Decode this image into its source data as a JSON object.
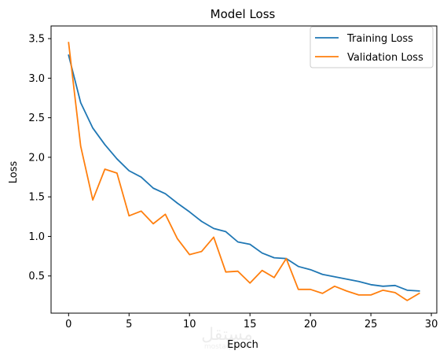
{
  "chart_data": {
    "type": "line",
    "title": "Model Loss",
    "xlabel": "Epoch",
    "ylabel": "Loss",
    "xlim": [
      -1.45,
      30.45
    ],
    "ylim": [
      0.03,
      3.66
    ],
    "xticks": [
      0,
      5,
      10,
      15,
      20,
      25,
      30
    ],
    "xtick_labels": [
      "0",
      "5",
      "10",
      "15",
      "20",
      "25",
      "30"
    ],
    "yticks": [
      0.5,
      1.0,
      1.5,
      2.0,
      2.5,
      3.0,
      3.5
    ],
    "ytick_labels": [
      "0.5",
      "1.0",
      "1.5",
      "2.0",
      "2.5",
      "3.0",
      "3.5"
    ],
    "grid": false,
    "legend_position": "top-right",
    "x": [
      0,
      1,
      2,
      3,
      4,
      5,
      6,
      7,
      8,
      9,
      10,
      11,
      12,
      13,
      14,
      15,
      16,
      17,
      18,
      19,
      20,
      21,
      22,
      23,
      24,
      25,
      26,
      27,
      28,
      29
    ],
    "series": [
      {
        "name": "Training Loss",
        "color": "#1f77b4",
        "values": [
          3.29,
          2.69,
          2.37,
          2.16,
          1.98,
          1.83,
          1.75,
          1.61,
          1.54,
          1.42,
          1.31,
          1.19,
          1.1,
          1.06,
          0.93,
          0.9,
          0.79,
          0.73,
          0.72,
          0.62,
          0.58,
          0.52,
          0.49,
          0.46,
          0.43,
          0.39,
          0.37,
          0.38,
          0.32,
          0.31
        ]
      },
      {
        "name": "Validation Loss",
        "color": "#ff7f0e",
        "values": [
          3.45,
          2.14,
          1.46,
          1.85,
          1.8,
          1.26,
          1.32,
          1.16,
          1.28,
          0.97,
          0.77,
          0.81,
          0.99,
          0.55,
          0.56,
          0.41,
          0.57,
          0.48,
          0.72,
          0.33,
          0.33,
          0.28,
          0.37,
          0.31,
          0.26,
          0.26,
          0.32,
          0.29,
          0.19,
          0.28
        ]
      }
    ]
  },
  "watermark": {
    "text": "مستقل",
    "subtext": "mostaql.com"
  }
}
